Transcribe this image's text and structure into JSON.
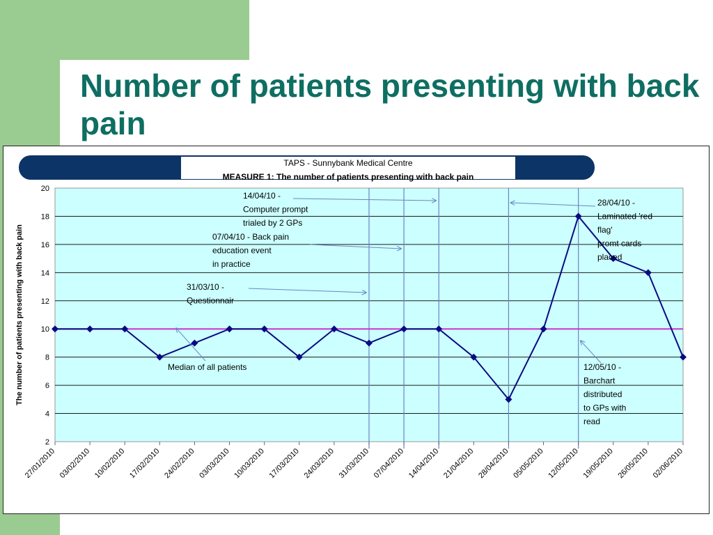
{
  "slide": {
    "title": "Number of patients presenting with back pain",
    "colors": {
      "background": "#ffffff",
      "accent_green": "#9acb90",
      "title": "#0e6e62"
    }
  },
  "chart_data": {
    "type": "line",
    "title": "TAPS - Sunnybank Medical Centre",
    "subtitle": "MEASURE 1: The number of patients presenting with back pain",
    "xlabel": "",
    "ylabel": "The number of patients presenting with back pain",
    "ylim": [
      2,
      20
    ],
    "yticks": [
      2,
      4,
      6,
      8,
      10,
      12,
      14,
      16,
      18,
      20
    ],
    "grid": true,
    "categories": [
      "27/01/2010",
      "03/02/2010",
      "10/02/2010",
      "17/02/2010",
      "24/02/2010",
      "03/03/2010",
      "10/03/2010",
      "17/03/2010",
      "24/03/2010",
      "31/03/2010",
      "07/04/2010",
      "14/04/2010",
      "21/04/2010",
      "28/04/2010",
      "05/05/2010",
      "12/05/2010",
      "19/05/2010",
      "26/05/2010",
      "02/06/2010"
    ],
    "series": [
      {
        "values": [
          10,
          10,
          10,
          8,
          9,
          10,
          10,
          8,
          10,
          9,
          10,
          10,
          8,
          5,
          10,
          18,
          15,
          14,
          8
        ],
        "color": "#0a0a82"
      },
      {
        "values": [
          10,
          10,
          10,
          10,
          10,
          10,
          10,
          10,
          10,
          10,
          10,
          10,
          10,
          10,
          10,
          10,
          10,
          10,
          10
        ],
        "color": "#cc33cc"
      }
    ],
    "plot_background": "#ccffff",
    "banner_color": "#0d3466",
    "event_line_color": "#6a84c2",
    "event_lines": [
      "31/03/2010",
      "07/04/2010",
      "14/04/2010",
      "28/04/2010",
      "12/05/2010"
    ],
    "annotations": [
      {
        "lines": [
          "14/04/10 -",
          "Computer prompt",
          "trialed by 2 GPs"
        ],
        "points_to": "14/04/2010"
      },
      {
        "lines": [
          "07/04/10 - Back pain",
          "education event",
          "in practice"
        ],
        "points_to": "07/04/2010"
      },
      {
        "lines": [
          "31/03/10 -",
          "Questionnair"
        ],
        "points_to": "31/03/2010"
      },
      {
        "lines": [
          "28/04/10 -",
          "Laminated 'red",
          "flag'",
          "promt cards",
          "placed"
        ],
        "points_to": "28/04/2010"
      },
      {
        "lines": [
          "12/05/10 -",
          "Barchart",
          "distributed",
          "to GPs  with",
          "read"
        ],
        "points_to": "12/05/2010"
      },
      {
        "lines": [
          "Median of all patients"
        ],
        "points_to": "Median"
      }
    ]
  }
}
